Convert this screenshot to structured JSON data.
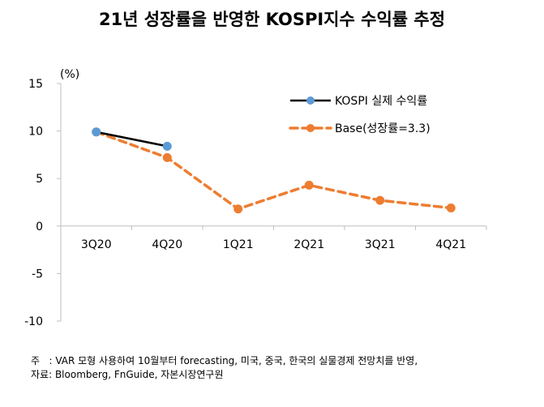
{
  "chart_data": {
    "type": "line",
    "title": "21년 성장률을 반영한 KOSPI지수 수익률 추정",
    "ylabel": "(%)",
    "categories": [
      "3Q20",
      "4Q20",
      "1Q21",
      "2Q21",
      "3Q21",
      "4Q21"
    ],
    "ylim": [
      -10,
      15
    ],
    "yticks": [
      15,
      10,
      5,
      0,
      -5,
      -10
    ],
    "grid": false,
    "legend_position": "top-right",
    "series": [
      {
        "name": "KOSPI 실제 수익률",
        "color": "#000000",
        "marker_color": "#5b9bd5",
        "dashed": false,
        "values": [
          9.9,
          8.4,
          null,
          null,
          null,
          null
        ]
      },
      {
        "name": "Base(성장률=3.3)",
        "color": "#ed7d31",
        "marker_color": "#ed7d31",
        "dashed": true,
        "values": [
          9.9,
          7.2,
          1.8,
          4.3,
          2.7,
          1.9
        ]
      }
    ]
  },
  "notes": {
    "line1": "주   : VAR 모형 사용하여 10월부터 forecasting, 미국, 중국, 한국의 실물경제 전망치를 반영,",
    "line2": "자료: Bloomberg, FnGuide, 자본시장연구원"
  }
}
